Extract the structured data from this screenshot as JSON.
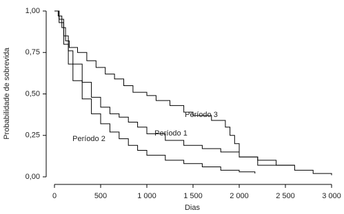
{
  "chart_data": {
    "type": "step",
    "x_label": "Dias",
    "y_label": "Probabilidade de sobrevida",
    "xlim": [
      0,
      3000
    ],
    "ylim": [
      0,
      1
    ],
    "xticks": [
      0,
      500,
      {
        "value": 1000,
        "label": "1 000"
      },
      {
        "value": 1500,
        "label": "1 500"
      },
      {
        "value": 2000,
        "label": "2 000"
      },
      {
        "value": 2500,
        "label": "2 500"
      },
      {
        "value": 3000,
        "label": "3 000"
      }
    ],
    "yticks": [
      {
        "value": 0,
        "label": "0,00"
      },
      {
        "value": 0.25,
        "label": "0,25"
      },
      {
        "value": 0.5,
        "label": "0,50"
      },
      {
        "value": 0.75,
        "label": "0,75"
      },
      {
        "value": 1,
        "label": "1,00"
      }
    ],
    "series": [
      {
        "name": "Período 1",
        "color": "#000000",
        "x": [
          0,
          50,
          100,
          150,
          200,
          300,
          400,
          500,
          600,
          700,
          800,
          900,
          1000,
          1200,
          1400,
          1600,
          1800,
          2000,
          2200,
          2400,
          2600,
          2800,
          3000
        ],
        "values": [
          1.0,
          0.95,
          0.85,
          0.76,
          0.68,
          0.57,
          0.48,
          0.42,
          0.38,
          0.36,
          0.33,
          0.3,
          0.26,
          0.22,
          0.19,
          0.17,
          0.15,
          0.12,
          0.1,
          0.07,
          0.04,
          0.02,
          0.01
        ]
      },
      {
        "name": "Período 2",
        "color": "#000000",
        "x": [
          0,
          50,
          100,
          150,
          200,
          300,
          400,
          500,
          600,
          700,
          800,
          900,
          1000,
          1200,
          1400,
          1600,
          1800,
          2000,
          2170
        ],
        "values": [
          1.0,
          0.93,
          0.8,
          0.68,
          0.58,
          0.47,
          0.38,
          0.32,
          0.27,
          0.23,
          0.19,
          0.16,
          0.13,
          0.1,
          0.08,
          0.06,
          0.04,
          0.03,
          0.02
        ]
      },
      {
        "name": "Período 3",
        "color": "#000000",
        "x": [
          0,
          40,
          80,
          120,
          160,
          250,
          350,
          450,
          550,
          650,
          750,
          850,
          1000,
          1100,
          1250,
          1400,
          1500,
          1700,
          1850,
          1900,
          1950,
          2000,
          2200,
          2600
        ],
        "values": [
          1.0,
          0.97,
          0.9,
          0.82,
          0.78,
          0.75,
          0.7,
          0.66,
          0.62,
          0.59,
          0.55,
          0.51,
          0.49,
          0.46,
          0.43,
          0.39,
          0.37,
          0.34,
          0.3,
          0.25,
          0.2,
          0.12,
          0.07,
          0.07
        ]
      }
    ]
  }
}
